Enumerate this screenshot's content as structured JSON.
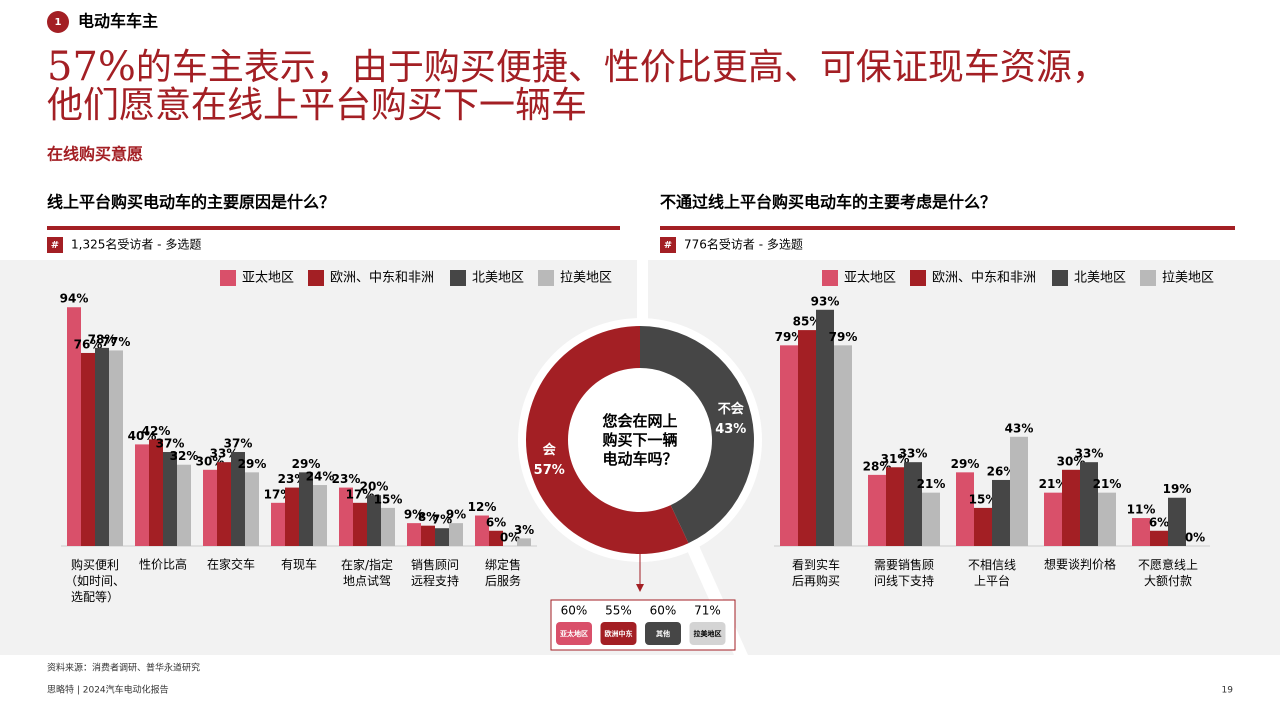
{
  "header": {
    "number": "1",
    "section": "电动车车主"
  },
  "headline": {
    "stat": "57%",
    "lines": [
      "的车主表示，由于购买便捷、性价比更高、可保证现车资源，",
      "他们愿意在线上平台购买下一辆车"
    ]
  },
  "subtitle": "在线购买意愿",
  "badge": "#",
  "chart_data": [
    {
      "type": "bar",
      "title": "线上平台购买电动车的主要原因是什么？",
      "note": "1,325名受访者 - 多选题",
      "categories": [
        "购买便利\n（如时间、\n选配等）",
        "性价比高",
        "在家交车",
        "有现车",
        "在家/指定\n地点试驾",
        "销售顾问\n远程支持",
        "绑定售\n后服务"
      ],
      "series": [
        {
          "name": "亚太地区",
          "color": "#d9506a",
          "values": [
            94,
            40,
            30,
            17,
            23,
            9,
            12
          ],
          "value_labels": [
            "94%",
            "40%",
            "30%",
            "17%",
            "23%",
            "9%",
            "12%"
          ]
        },
        {
          "name": "欧洲、中东和非洲",
          "color": "#a31f24",
          "values": [
            76,
            42,
            33,
            23,
            17,
            8,
            6
          ],
          "value_labels": [
            "76%",
            "42%",
            "33%",
            "23%",
            "17%",
            "8%",
            "6%"
          ]
        },
        {
          "name": "北美地区",
          "color": "#464646",
          "values": [
            78,
            37,
            37,
            29,
            20,
            7,
            0
          ],
          "value_labels": [
            "78%",
            "37%",
            "37%",
            "29%",
            "20%",
            "7%",
            "0%"
          ]
        },
        {
          "name": "拉美地区",
          "color": "#b9b9b9",
          "values": [
            77,
            32,
            29,
            24,
            15,
            9,
            3
          ],
          "value_labels": [
            "77%",
            "32%",
            "29%",
            "24%",
            "15%",
            "9%",
            "3%"
          ]
        }
      ],
      "ylim": [
        0,
        100
      ],
      "legend": "top-right"
    },
    {
      "type": "bar",
      "title": "不通过线上平台购买电动车的主要考虑是什么？",
      "note": "776名受访者 - 多选题",
      "categories": [
        "看到实车\n后再购买",
        "需要销售顾\n问线下支持",
        "不相信线\n上平台",
        "想要谈判价格",
        "不愿意线上\n大额付款"
      ],
      "series": [
        {
          "name": "亚太地区",
          "color": "#d9506a",
          "values": [
            79,
            28,
            29,
            21,
            11
          ],
          "value_labels": [
            "79%",
            "28%",
            "29%",
            "21%",
            "11%"
          ]
        },
        {
          "name": "欧洲、中东和非洲",
          "color": "#a31f24",
          "values": [
            85,
            31,
            15,
            30,
            6
          ],
          "value_labels": [
            "85%",
            "31%",
            "15%",
            "30%",
            "6%"
          ]
        },
        {
          "name": "北美地区",
          "color": "#464646",
          "values": [
            93,
            33,
            26,
            33,
            19
          ],
          "value_labels": [
            "93%",
            "33%",
            "26%",
            "33%",
            "19%"
          ]
        },
        {
          "name": "拉美地区",
          "color": "#b9b9b9",
          "values": [
            79,
            21,
            43,
            21,
            0
          ],
          "value_labels": [
            "79%",
            "21%",
            "43%",
            "21%",
            "0%"
          ]
        }
      ],
      "ylim": [
        0,
        100
      ],
      "legend": "top-right"
    },
    {
      "type": "donut",
      "title": "您会在网上\n购买下一辆\n电动车吗？",
      "categories": [
        "会",
        "不会"
      ],
      "values": [
        57,
        43
      ],
      "value_labels": [
        "57%",
        "43%"
      ],
      "colors": [
        "#a31f24",
        "#464646"
      ],
      "breakdown": {
        "categories": [
          "亚太地区",
          "欧洲中东",
          "其他",
          "拉美地区"
        ],
        "values": [
          60,
          55,
          60,
          71
        ],
        "value_labels": [
          "60%",
          "55%",
          "60%",
          "71%"
        ],
        "colors": [
          "#d9506a",
          "#a31f24",
          "#464646",
          "#d4d4d4"
        ]
      }
    }
  ],
  "source": "资料来源：消费者调研、普华永道研究",
  "footer": "思略特 | 2024汽车电动化报告",
  "page": "19"
}
